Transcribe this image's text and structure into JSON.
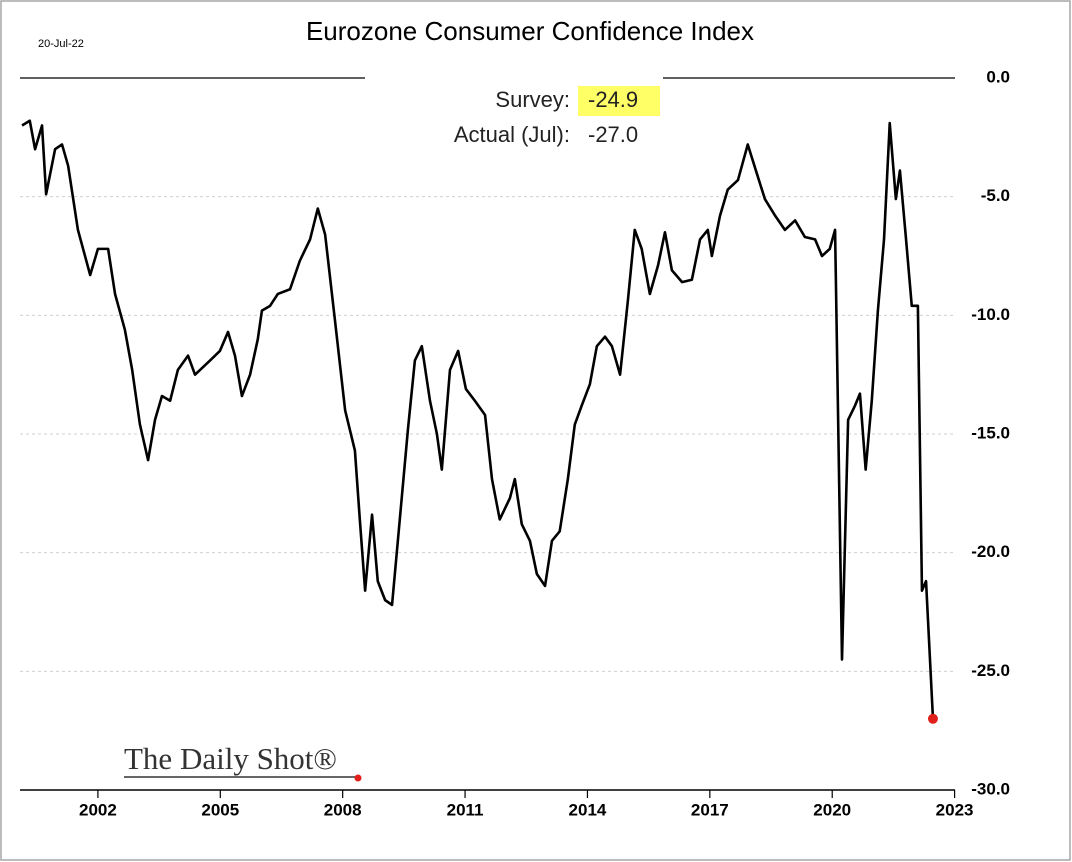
{
  "chart_data": {
    "type": "line",
    "title": "Eurozone Consumer Confidence Index",
    "annotations": {
      "date": "20-Jul-22",
      "survey_label": "Survey:",
      "survey_value": "-24.9",
      "actual_label": "Actual (Jul):",
      "actual_value": "-27.0",
      "watermark": "The Daily Shot®"
    },
    "color": "#000000",
    "marker_color": "#e0201b",
    "highlight_color": "#ffff66",
    "x": [
      2000.14,
      2000.33,
      2000.46,
      2000.63,
      2000.73,
      2000.95,
      2001.12,
      2001.27,
      2001.51,
      2001.81,
      2002.0,
      2002.25,
      2002.42,
      2002.66,
      2002.84,
      2003.03,
      2003.23,
      2003.4,
      2003.57,
      2003.77,
      2003.96,
      2004.21,
      2004.38,
      2004.75,
      2004.99,
      2005.19,
      2005.36,
      2005.53,
      2005.73,
      2005.92,
      2006.02,
      2006.22,
      2006.41,
      2006.71,
      2006.95,
      2007.2,
      2007.39,
      2007.57,
      2007.81,
      2008.06,
      2008.3,
      2008.42,
      2008.55,
      2008.72,
      2008.86,
      2009.04,
      2009.21,
      2009.4,
      2009.6,
      2009.77,
      2009.94,
      2010.14,
      2010.31,
      2010.43,
      2010.63,
      2010.83,
      2011.02,
      2011.24,
      2011.49,
      2011.66,
      2011.85,
      2012.1,
      2012.22,
      2012.39,
      2012.59,
      2012.76,
      2012.96,
      2013.13,
      2013.32,
      2013.52,
      2013.69,
      2013.86,
      2014.06,
      2014.23,
      2014.43,
      2014.6,
      2014.8,
      2014.99,
      2015.16,
      2015.33,
      2015.53,
      2015.73,
      2015.9,
      2016.07,
      2016.32,
      2016.56,
      2016.76,
      2016.95,
      2017.05,
      2017.25,
      2017.44,
      2017.69,
      2017.93,
      2018.13,
      2018.35,
      2018.6,
      2018.84,
      2019.09,
      2019.33,
      2019.58,
      2019.75,
      2019.94,
      2020.07,
      2020.24,
      2020.39,
      2020.56,
      2020.68,
      2020.82,
      2020.97,
      2021.12,
      2021.27,
      2021.41,
      2021.56,
      2021.66,
      2021.81,
      2021.95,
      2022.1,
      2022.2,
      2022.3,
      2022.47
    ],
    "values": [
      -2.0,
      -1.8,
      -3.0,
      -2.0,
      -4.9,
      -3.0,
      -2.8,
      -3.7,
      -6.4,
      -8.3,
      -7.2,
      -7.2,
      -9.1,
      -10.6,
      -12.3,
      -14.6,
      -16.1,
      -14.4,
      -13.4,
      -13.6,
      -12.3,
      -11.7,
      -12.5,
      -11.9,
      -11.5,
      -10.7,
      -11.7,
      -13.4,
      -12.5,
      -11.0,
      -9.8,
      -9.6,
      -9.1,
      -8.9,
      -7.7,
      -6.8,
      -5.5,
      -6.6,
      -10.2,
      -14.0,
      -15.7,
      -18.6,
      -21.6,
      -18.4,
      -21.2,
      -22.0,
      -22.2,
      -18.6,
      -14.8,
      -11.9,
      -11.3,
      -13.6,
      -15.0,
      -16.5,
      -12.3,
      -11.5,
      -13.1,
      -13.6,
      -14.2,
      -16.9,
      -18.6,
      -17.7,
      -16.9,
      -18.8,
      -19.5,
      -20.9,
      -21.4,
      -19.5,
      -19.1,
      -16.9,
      -14.6,
      -13.8,
      -12.9,
      -11.3,
      -10.9,
      -11.3,
      -12.5,
      -9.4,
      -6.4,
      -7.2,
      -9.1,
      -7.9,
      -6.5,
      -8.1,
      -8.6,
      -8.5,
      -6.8,
      -6.4,
      -7.5,
      -5.8,
      -4.7,
      -4.3,
      -2.8,
      -3.9,
      -5.1,
      -5.8,
      -6.4,
      -6.0,
      -6.7,
      -6.8,
      -7.5,
      -7.2,
      -6.4,
      -24.5,
      -14.4,
      -13.8,
      -13.3,
      -16.5,
      -13.6,
      -9.8,
      -6.8,
      -1.9,
      -5.1,
      -3.9,
      -6.8,
      -9.6,
      -9.6,
      -21.6,
      -21.2,
      -27.0
    ],
    "xlim": [
      2000.09,
      2023.01
    ],
    "xticks": [
      2002,
      2005,
      2008,
      2011,
      2014,
      2017,
      2020,
      2023
    ],
    "ylim": [
      -30,
      0
    ],
    "yticks": [
      {
        "value": 0,
        "label": "0.0"
      },
      {
        "value": -5,
        "label": "-5.0"
      },
      {
        "value": -10,
        "label": "-10.0"
      },
      {
        "value": -15,
        "label": "-15.0"
      },
      {
        "value": -20,
        "label": "-20.0"
      },
      {
        "value": -25,
        "label": "-25.0"
      },
      {
        "value": -30,
        "label": "-30.0"
      }
    ],
    "grid": true
  }
}
